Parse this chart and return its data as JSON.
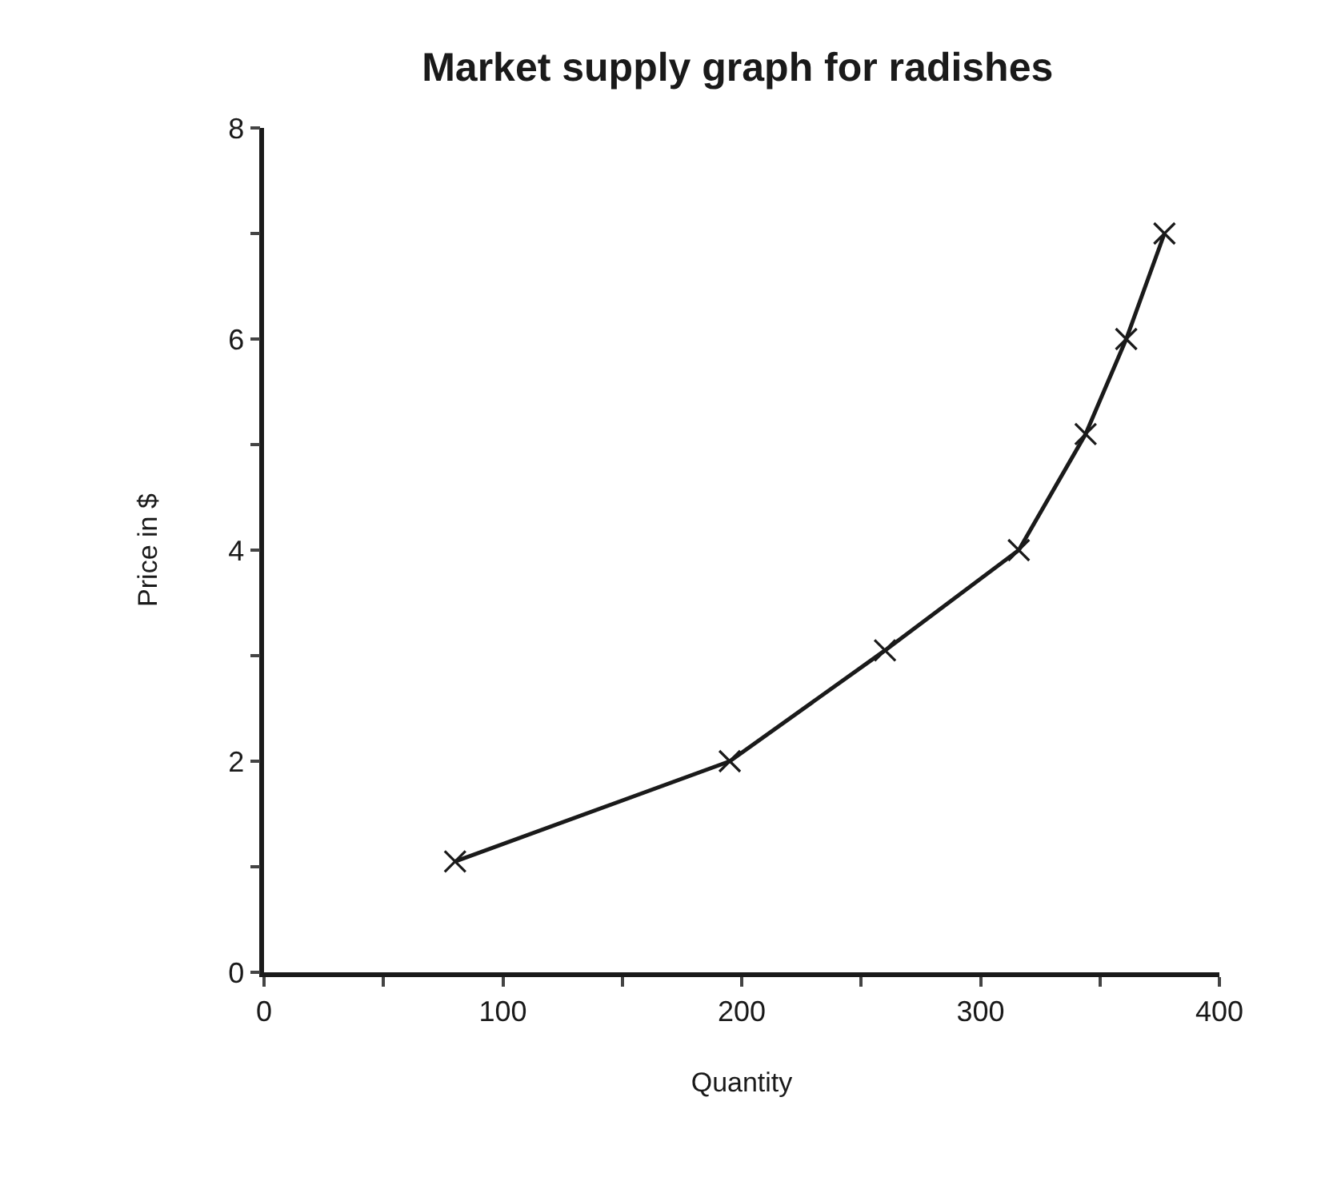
{
  "chart_data": {
    "type": "line",
    "title": "Market supply graph for radishes",
    "xlabel": "Quantity",
    "ylabel": "Price in $",
    "x": [
      80,
      195,
      260,
      316,
      344,
      361,
      377
    ],
    "values": [
      1.05,
      2,
      3.05,
      4,
      5.1,
      6,
      7
    ],
    "color": "#1a1a1a",
    "marker": "cross",
    "line_style": "solid",
    "grid": false,
    "xlim": [
      0,
      400
    ],
    "xticks": [
      0,
      {
        "value": 50,
        "label": null
      },
      100,
      {
        "value": 150,
        "label": null
      },
      200,
      {
        "value": 250,
        "label": null
      },
      300,
      {
        "value": 350,
        "label": null
      },
      400
    ],
    "ylim": [
      0,
      8
    ],
    "yticks": [
      0,
      {
        "value": 1,
        "label": null
      },
      2,
      {
        "value": 3,
        "label": null
      },
      4,
      {
        "value": 5,
        "label": null
      },
      6,
      {
        "value": 7,
        "label": null
      },
      8
    ]
  }
}
